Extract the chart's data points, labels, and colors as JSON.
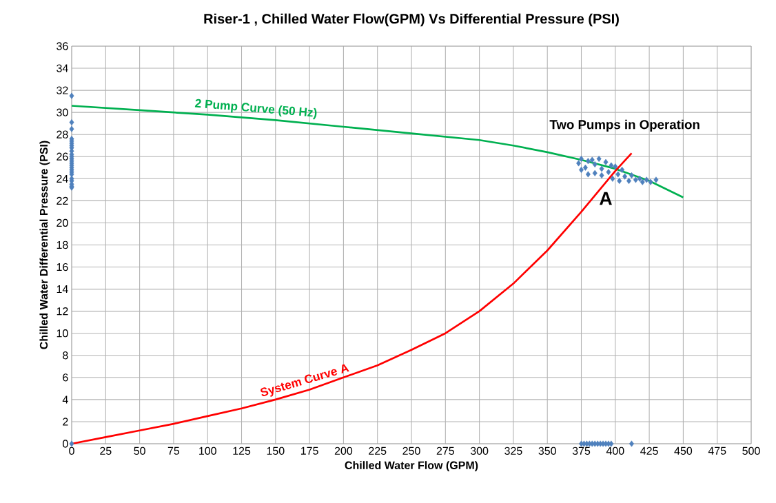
{
  "chart_data": {
    "type": "scatter",
    "title": "Riser-1 , Chilled Water Flow(GPM) Vs Differential Pressure (PSI)",
    "xlabel": "Chilled  Water Flow (GPM)",
    "ylabel": "Chilled Water Differential Pressure (PSI)",
    "annotations": [
      "Two Pumps in Operation",
      "A"
    ],
    "xlim": [
      0,
      500
    ],
    "xticks": [
      0,
      25,
      50,
      75,
      100,
      125,
      150,
      175,
      200,
      225,
      250,
      275,
      300,
      325,
      350,
      375,
      400,
      425,
      450,
      475,
      500
    ],
    "ylim": [
      0,
      36
    ],
    "yticks": [
      0,
      2,
      4,
      6,
      8,
      10,
      12,
      14,
      16,
      18,
      20,
      22,
      24,
      26,
      28,
      30,
      32,
      34,
      36
    ],
    "grid": true,
    "legend": false,
    "series": [
      {
        "name": "2 Pump Curve (50 Hz)",
        "type": "line",
        "marker": "none",
        "color": "#00b050",
        "x": [
          0,
          50,
          100,
          150,
          200,
          250,
          300,
          325,
          350,
          375,
          400,
          425,
          450
        ],
        "values": [
          30.6,
          30.2,
          29.8,
          29.3,
          28.7,
          28.1,
          27.5,
          27.0,
          26.4,
          25.7,
          24.9,
          23.8,
          22.3
        ]
      },
      {
        "name": "System Curve A",
        "type": "line",
        "marker": "none",
        "color": "#ff0000",
        "x": [
          0,
          25,
          50,
          75,
          100,
          125,
          150,
          175,
          200,
          225,
          250,
          275,
          300,
          325,
          350,
          375,
          400,
          412
        ],
        "values": [
          0,
          0.6,
          1.2,
          1.8,
          2.5,
          3.2,
          4.0,
          4.9,
          6.0,
          7.1,
          8.5,
          10.0,
          12.0,
          14.5,
          17.5,
          21.0,
          24.7,
          26.3
        ]
      },
      {
        "marker": "diamond",
        "color": "#4f81bd",
        "x": [
          0,
          0,
          0,
          0,
          0,
          0,
          0,
          0,
          0,
          0,
          0,
          0,
          0,
          0,
          0,
          0,
          0,
          0,
          0,
          0,
          0,
          0,
          0,
          0,
          0,
          375,
          377,
          379,
          381,
          383,
          385,
          387,
          389,
          391,
          393,
          395,
          397,
          412,
          373,
          375,
          375,
          378,
          380,
          380,
          383,
          385,
          385,
          388,
          390,
          390,
          393,
          395,
          397,
          398,
          400,
          402,
          403,
          405,
          407,
          410,
          412,
          415,
          418,
          420,
          423,
          426,
          430
        ],
        "values": [
          31.5,
          29.1,
          28.5,
          27.6,
          27.4,
          27.2,
          27.0,
          26.8,
          26.5,
          26.2,
          26.0,
          25.8,
          25.6,
          25.4,
          25.2,
          25.0,
          24.8,
          24.6,
          24.4,
          24.0,
          23.8,
          23.5,
          23.3,
          23.2,
          0,
          0,
          0,
          0,
          0,
          0,
          0,
          0,
          0,
          0,
          0,
          0,
          0,
          0,
          25.4,
          25.8,
          24.8,
          25.0,
          25.6,
          24.4,
          25.7,
          24.5,
          25.3,
          25.8,
          24.9,
          24.3,
          25.5,
          24.6,
          25.2,
          24.0,
          25.1,
          24.4,
          23.8,
          24.8,
          24.2,
          23.8,
          24.3,
          23.9,
          24.0,
          23.7,
          23.9,
          23.7,
          23.9
        ]
      }
    ]
  }
}
